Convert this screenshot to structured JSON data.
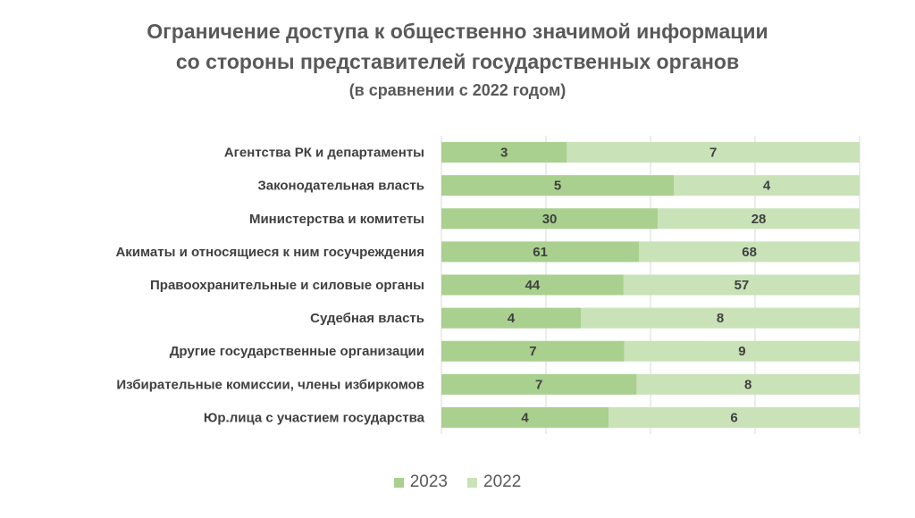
{
  "chart_data": {
    "type": "bar",
    "orientation": "horizontal",
    "stacked": "percent",
    "title": "Ограничение доступа к общественно значимой информации",
    "title_line2": "со стороны представителей государственных органов",
    "subtitle": "(в сравнении с 2022 годом)",
    "categories": [
      "Агентства РК и департаменты",
      "Законодательная власть",
      "Министерства и комитеты",
      "Акиматы и относящиеся к ним госучреждения",
      "Правоохранительные и силовые органы",
      "Судебная власть",
      "Другие государственные организации",
      "Избирательные комиссии, члены избиркомов",
      "Юр.лица с участием государства"
    ],
    "series": [
      {
        "name": "2023",
        "color": "#a9d08e",
        "values": [
          3,
          5,
          30,
          61,
          44,
          4,
          7,
          7,
          4
        ]
      },
      {
        "name": "2022",
        "color": "#c9e2b8",
        "values": [
          7,
          4,
          28,
          68,
          57,
          8,
          9,
          8,
          6
        ]
      }
    ],
    "xlim": [
      0,
      1
    ],
    "grid": true,
    "legend_position": "bottom"
  }
}
